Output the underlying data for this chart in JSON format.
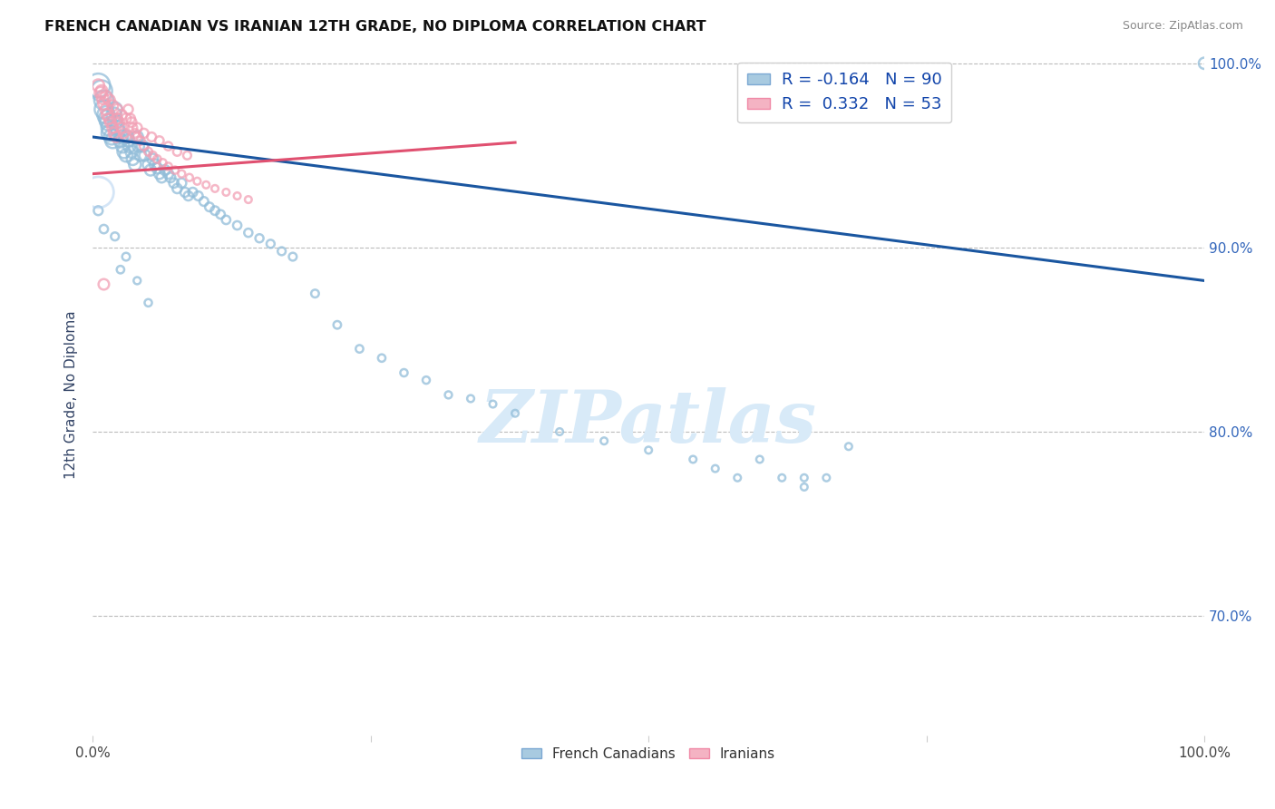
{
  "title": "FRENCH CANADIAN VS IRANIAN 12TH GRADE, NO DIPLOMA CORRELATION CHART",
  "source": "Source: ZipAtlas.com",
  "ylabel": "12th Grade, No Diploma",
  "xlim": [
    0.0,
    1.0
  ],
  "ylim": [
    0.635,
    1.005
  ],
  "yticks": [
    0.7,
    0.8,
    0.9,
    1.0
  ],
  "ytick_labels": [
    "70.0%",
    "80.0%",
    "90.0%",
    "100.0%"
  ],
  "xtick_labels": [
    "0.0%",
    "",
    "",
    "",
    "100.0%"
  ],
  "legend_R_blue": "-0.164",
  "legend_N_blue": "90",
  "legend_R_pink": "0.332",
  "legend_N_pink": "53",
  "blue_color": "#92BDD9",
  "pink_color": "#F2A0B5",
  "trend_blue": "#1A56A0",
  "trend_pink": "#E05070",
  "watermark": "ZIPatlas",
  "watermark_color": "#D8EAF8",
  "trend_blue_x0": 0.0,
  "trend_blue_y0": 0.96,
  "trend_blue_x1": 1.0,
  "trend_blue_y1": 0.882,
  "trend_pink_x0": 0.0,
  "trend_pink_y0": 0.94,
  "trend_pink_x1": 0.38,
  "trend_pink_y1": 0.957,
  "fc_x": [
    0.005,
    0.008,
    0.01,
    0.01,
    0.012,
    0.013,
    0.014,
    0.015,
    0.015,
    0.017,
    0.018,
    0.019,
    0.02,
    0.02,
    0.022,
    0.023,
    0.025,
    0.026,
    0.027,
    0.028,
    0.03,
    0.031,
    0.032,
    0.033,
    0.035,
    0.036,
    0.038,
    0.04,
    0.041,
    0.043,
    0.045,
    0.047,
    0.05,
    0.052,
    0.054,
    0.056,
    0.058,
    0.06,
    0.062,
    0.065,
    0.068,
    0.07,
    0.073,
    0.076,
    0.08,
    0.083,
    0.086,
    0.09,
    0.095,
    0.1,
    0.105,
    0.11,
    0.115,
    0.12,
    0.13,
    0.14,
    0.15,
    0.16,
    0.17,
    0.18,
    0.2,
    0.22,
    0.24,
    0.26,
    0.28,
    0.3,
    0.32,
    0.34,
    0.36,
    0.38,
    0.42,
    0.46,
    0.5,
    0.54,
    0.56,
    0.58,
    0.6,
    0.62,
    0.64,
    0.66,
    0.68,
    0.64,
    0.005,
    0.01,
    0.02,
    0.03,
    0.025,
    0.05,
    0.04,
    1.0
  ],
  "fc_y": [
    0.988,
    0.985,
    0.98,
    0.975,
    0.972,
    0.97,
    0.968,
    0.965,
    0.962,
    0.96,
    0.958,
    0.972,
    0.968,
    0.975,
    0.965,
    0.963,
    0.958,
    0.96,
    0.955,
    0.952,
    0.95,
    0.96,
    0.958,
    0.955,
    0.952,
    0.948,
    0.945,
    0.96,
    0.955,
    0.95,
    0.955,
    0.95,
    0.945,
    0.942,
    0.948,
    0.945,
    0.943,
    0.94,
    0.938,
    0.942,
    0.94,
    0.938,
    0.935,
    0.932,
    0.935,
    0.93,
    0.928,
    0.93,
    0.928,
    0.925,
    0.922,
    0.92,
    0.918,
    0.915,
    0.912,
    0.908,
    0.905,
    0.902,
    0.898,
    0.895,
    0.875,
    0.858,
    0.845,
    0.84,
    0.832,
    0.828,
    0.82,
    0.818,
    0.815,
    0.81,
    0.8,
    0.795,
    0.79,
    0.785,
    0.78,
    0.775,
    0.785,
    0.775,
    0.77,
    0.775,
    0.792,
    0.775,
    0.92,
    0.91,
    0.906,
    0.895,
    0.888,
    0.87,
    0.882,
    1.0
  ],
  "fc_size": [
    350,
    280,
    230,
    210,
    190,
    175,
    165,
    160,
    155,
    145,
    140,
    135,
    130,
    125,
    120,
    115,
    112,
    108,
    105,
    102,
    100,
    98,
    96,
    94,
    92,
    90,
    88,
    86,
    84,
    82,
    80,
    78,
    76,
    74,
    72,
    70,
    68,
    66,
    64,
    62,
    60,
    58,
    56,
    55,
    54,
    53,
    52,
    51,
    50,
    49,
    48,
    47,
    46,
    45,
    44,
    43,
    42,
    41,
    40,
    39,
    38,
    37,
    36,
    35,
    34,
    33,
    32,
    31,
    30,
    30,
    30,
    30,
    30,
    30,
    30,
    30,
    30,
    30,
    30,
    30,
    30,
    30,
    50,
    45,
    40,
    38,
    36,
    34,
    32,
    80
  ],
  "ir_x": [
    0.005,
    0.007,
    0.009,
    0.01,
    0.012,
    0.013,
    0.015,
    0.016,
    0.018,
    0.019,
    0.021,
    0.022,
    0.024,
    0.026,
    0.028,
    0.03,
    0.032,
    0.034,
    0.036,
    0.038,
    0.04,
    0.043,
    0.046,
    0.05,
    0.054,
    0.058,
    0.063,
    0.068,
    0.074,
    0.08,
    0.087,
    0.094,
    0.102,
    0.11,
    0.12,
    0.13,
    0.14,
    0.008,
    0.012,
    0.015,
    0.018,
    0.022,
    0.026,
    0.03,
    0.035,
    0.04,
    0.046,
    0.053,
    0.06,
    0.068,
    0.076,
    0.085,
    0.01
  ],
  "ir_y": [
    0.988,
    0.984,
    0.981,
    0.978,
    0.975,
    0.972,
    0.97,
    0.968,
    0.965,
    0.962,
    0.96,
    0.97,
    0.968,
    0.965,
    0.962,
    0.96,
    0.975,
    0.97,
    0.965,
    0.962,
    0.96,
    0.958,
    0.955,
    0.952,
    0.95,
    0.948,
    0.946,
    0.944,
    0.942,
    0.94,
    0.938,
    0.936,
    0.934,
    0.932,
    0.93,
    0.928,
    0.926,
    0.985,
    0.982,
    0.98,
    0.977,
    0.975,
    0.972,
    0.97,
    0.968,
    0.965,
    0.962,
    0.96,
    0.958,
    0.955,
    0.952,
    0.95,
    0.88
  ],
  "ir_size": [
    90,
    85,
    82,
    80,
    78,
    76,
    74,
    72,
    70,
    68,
    66,
    64,
    62,
    60,
    58,
    56,
    54,
    52,
    50,
    48,
    46,
    44,
    42,
    40,
    38,
    37,
    36,
    35,
    34,
    33,
    32,
    31,
    30,
    30,
    30,
    30,
    30,
    82,
    78,
    75,
    72,
    68,
    65,
    62,
    59,
    56,
    53,
    50,
    47,
    44,
    42,
    40,
    70
  ]
}
